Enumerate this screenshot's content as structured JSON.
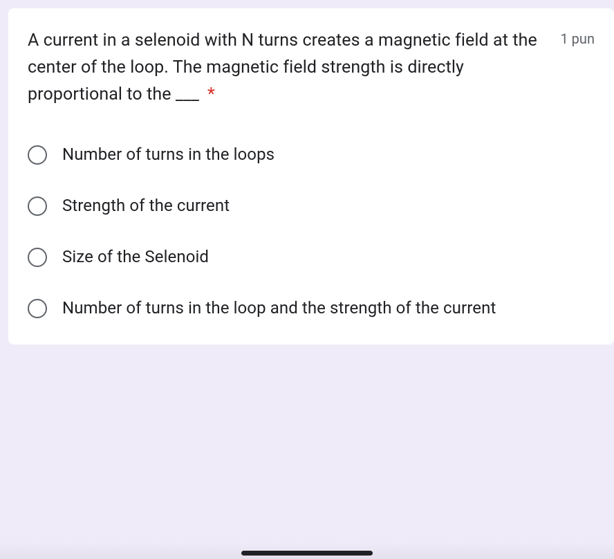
{
  "question": {
    "text": "A current in a selenoid with N turns creates a magnetic field at the center of the loop. The magnetic field strength is directly proportional to the ___",
    "required_marker": "*",
    "points_label": "1 pun"
  },
  "options": [
    {
      "label": "Number of turns in the loops"
    },
    {
      "label": "Strength of the current"
    },
    {
      "label": "Size of the Selenoid"
    },
    {
      "label": "Number of turns in the loop and the strength of the current"
    }
  ],
  "styling": {
    "card_bg": "#ffffff",
    "page_bg": "#f0ebf8",
    "text_color": "#202124",
    "muted_color": "#5f6368",
    "accent_red": "#d93025",
    "question_fontsize": 25,
    "option_fontsize": 24,
    "points_fontsize": 20,
    "radio_size": 28,
    "radio_border_width": 2.5,
    "card_radius": 8
  }
}
